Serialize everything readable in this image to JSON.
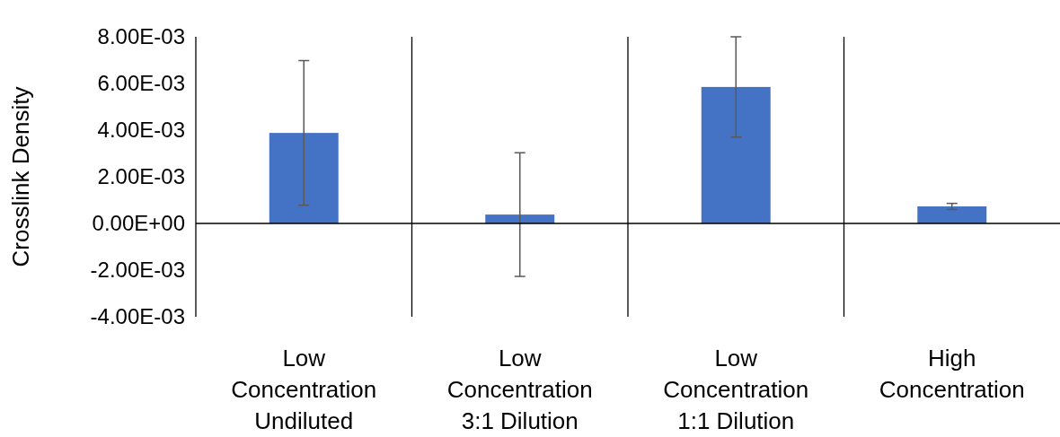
{
  "chart_data": {
    "type": "bar",
    "ylabel": "Crosslink Density",
    "categories": [
      "Low Concentration Undiluted",
      "Low Concentration 3:1 Dilution",
      "Low Concentration 1:1 Dilution",
      "High Concentration"
    ],
    "values": [
      0.00388,
      0.00038,
      0.00585,
      0.00073
    ],
    "errors": [
      0.0031,
      0.00265,
      0.00215,
      0.00013
    ],
    "color": "#4472c4",
    "ylim": [
      -0.004,
      0.008
    ],
    "yticks": [
      {
        "value": -0.004,
        "label": "-4.00E-03"
      },
      {
        "value": -0.002,
        "label": "-2.00E-03"
      },
      {
        "value": 0,
        "label": "0.00E+00"
      },
      {
        "value": 0.002,
        "label": "2.00E-03"
      },
      {
        "value": 0.004,
        "label": "4.00E-03"
      },
      {
        "value": 0.006,
        "label": "6.00E-03"
      },
      {
        "value": 0.008,
        "label": "8.00E-03"
      }
    ]
  }
}
